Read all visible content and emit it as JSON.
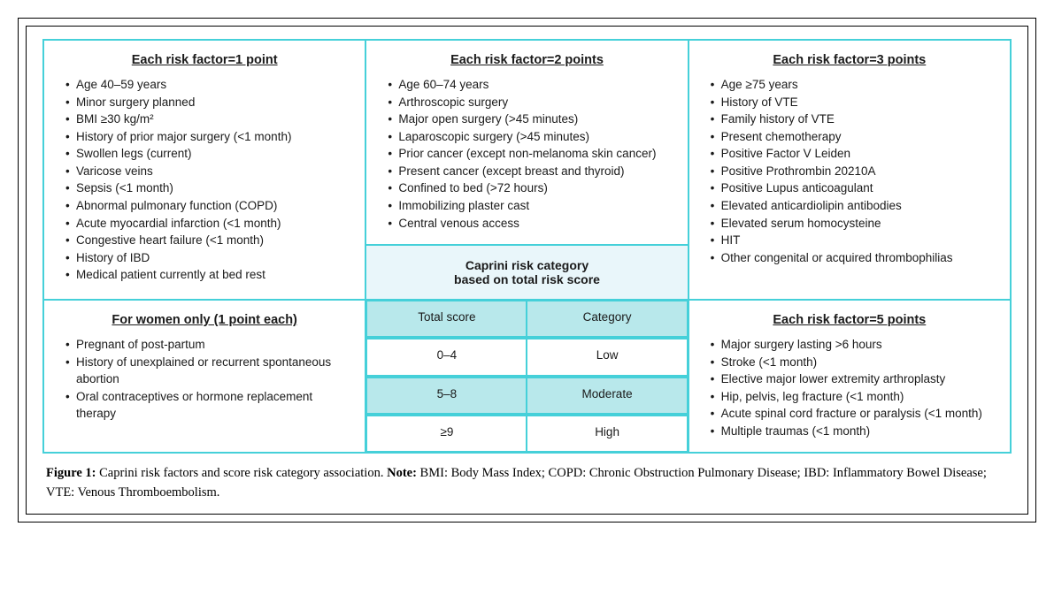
{
  "layout": {
    "border_color": "#45d0d9",
    "header_bg": "#e9f6fa",
    "row_alt_bg": "#b8e8eb",
    "row_bg": "#ffffff",
    "text_color": "#1a1a1a",
    "outer_border": "#000000"
  },
  "panels": {
    "p1": {
      "title": "Each risk factor=1 point",
      "items": [
        "Age 40–59 years",
        "Minor surgery planned",
        "BMI ≥30 kg/m²",
        "History of prior major surgery (<1 month)",
        "Swollen legs (current)",
        "Varicose veins",
        "Sepsis (<1 month)",
        "Abnormal pulmonary function (COPD)",
        "Acute myocardial infarction (<1 month)",
        "Congestive heart failure (<1 month)",
        "History of IBD",
        "Medical patient currently at bed rest"
      ]
    },
    "women": {
      "title": "For women only (1 point each)",
      "items": [
        "Pregnant of post-partum",
        "History of unexplained or recurrent spontaneous abortion",
        "Oral contraceptives or hormone replacement therapy"
      ]
    },
    "p2": {
      "title": "Each risk factor=2 points",
      "items": [
        "Age 60–74 years",
        "Arthroscopic surgery",
        "Major open surgery (>45 minutes)",
        "Laparoscopic surgery (>45 minutes)",
        "Prior cancer (except non-melanoma skin cancer)",
        "Present cancer (except breast and thyroid)",
        "Confined to bed (>72 hours)",
        "Immobilizing plaster cast",
        "Central venous access"
      ]
    },
    "p3": {
      "title": "Each risk factor=3 points",
      "items": [
        "Age ≥75 years",
        "History of VTE",
        "Family history of VTE",
        "Present chemotherapy",
        "Positive Factor V Leiden",
        "Positive Prothrombin 20210A",
        "Positive Lupus anticoagulant",
        "Elevated anticardiolipin antibodies",
        "Elevated serum homocysteine",
        "HIT",
        "Other congenital or acquired thrombophilias"
      ]
    },
    "p5": {
      "title": "Each risk factor=5 points",
      "items": [
        "Major surgery lasting >6 hours",
        "Stroke (<1 month)",
        "Elective major lower extremity arthroplasty",
        "Hip, pelvis, leg fracture (<1 month)",
        "Acute spinal cord fracture or paralysis (<1 month)",
        "Multiple traumas (<1 month)"
      ]
    }
  },
  "scoreTable": {
    "title_line1": "Caprini risk category",
    "title_line2": "based on total risk score",
    "header": {
      "col1": "Total score",
      "col2": "Category"
    },
    "rows": [
      {
        "score": "0–4",
        "category": "Low"
      },
      {
        "score": "5–8",
        "category": "Moderate"
      },
      {
        "score": "≥9",
        "category": "High"
      }
    ]
  },
  "caption": {
    "label": "Figure 1:",
    "text": " Caprini risk factors and score risk category association. ",
    "note_label": "Note:",
    "note_text": " BMI: Body Mass Index; COPD: Chronic Obstruction Pulmonary Disease; IBD: Inflammatory Bowel Disease; VTE: Venous Thromboembolism."
  }
}
